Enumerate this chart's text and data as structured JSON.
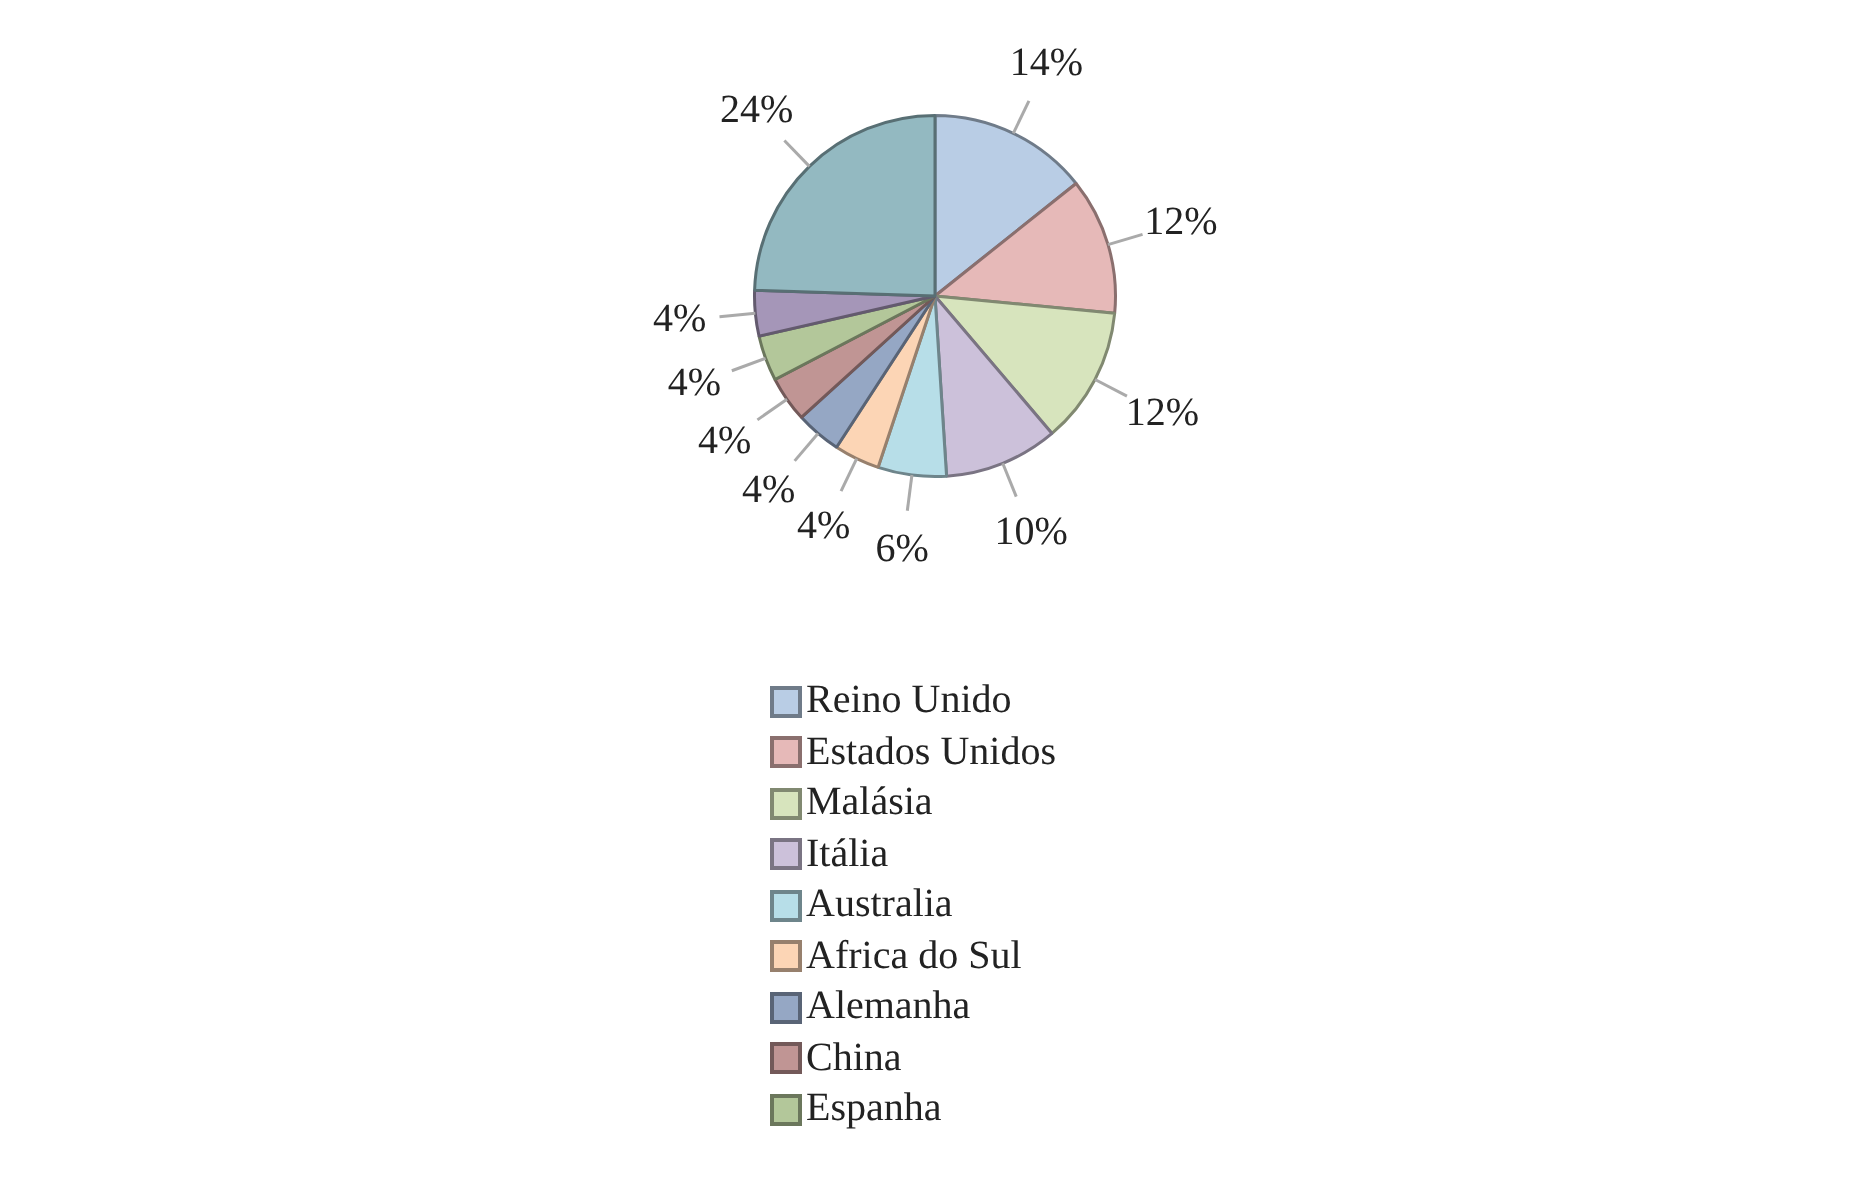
{
  "chart_data": {
    "type": "pie",
    "categories": [
      "Reino Unido",
      "Estados Unidos",
      "Malásia",
      "Itália",
      "Australia",
      "Africa do Sul",
      "Alemanha",
      "China",
      "Espanha",
      null,
      null
    ],
    "values": [
      14,
      12,
      12,
      10,
      6,
      4,
      4,
      4,
      4,
      4,
      24
    ],
    "colors": [
      "#b9cde5",
      "#e6b9b8",
      "#d7e4bd",
      "#ccc1da",
      "#b7dee8",
      "#fcd5b5",
      "#95a7c4",
      "#c09594",
      "#b3c79a",
      "#a596b8",
      "#93b9c1"
    ],
    "value_labels": [
      "14%",
      "12%",
      "12%",
      "10%",
      "6%",
      "4%",
      "4%",
      "4%",
      "4%",
      "4%",
      "24%"
    ],
    "legend": "bottom"
  }
}
